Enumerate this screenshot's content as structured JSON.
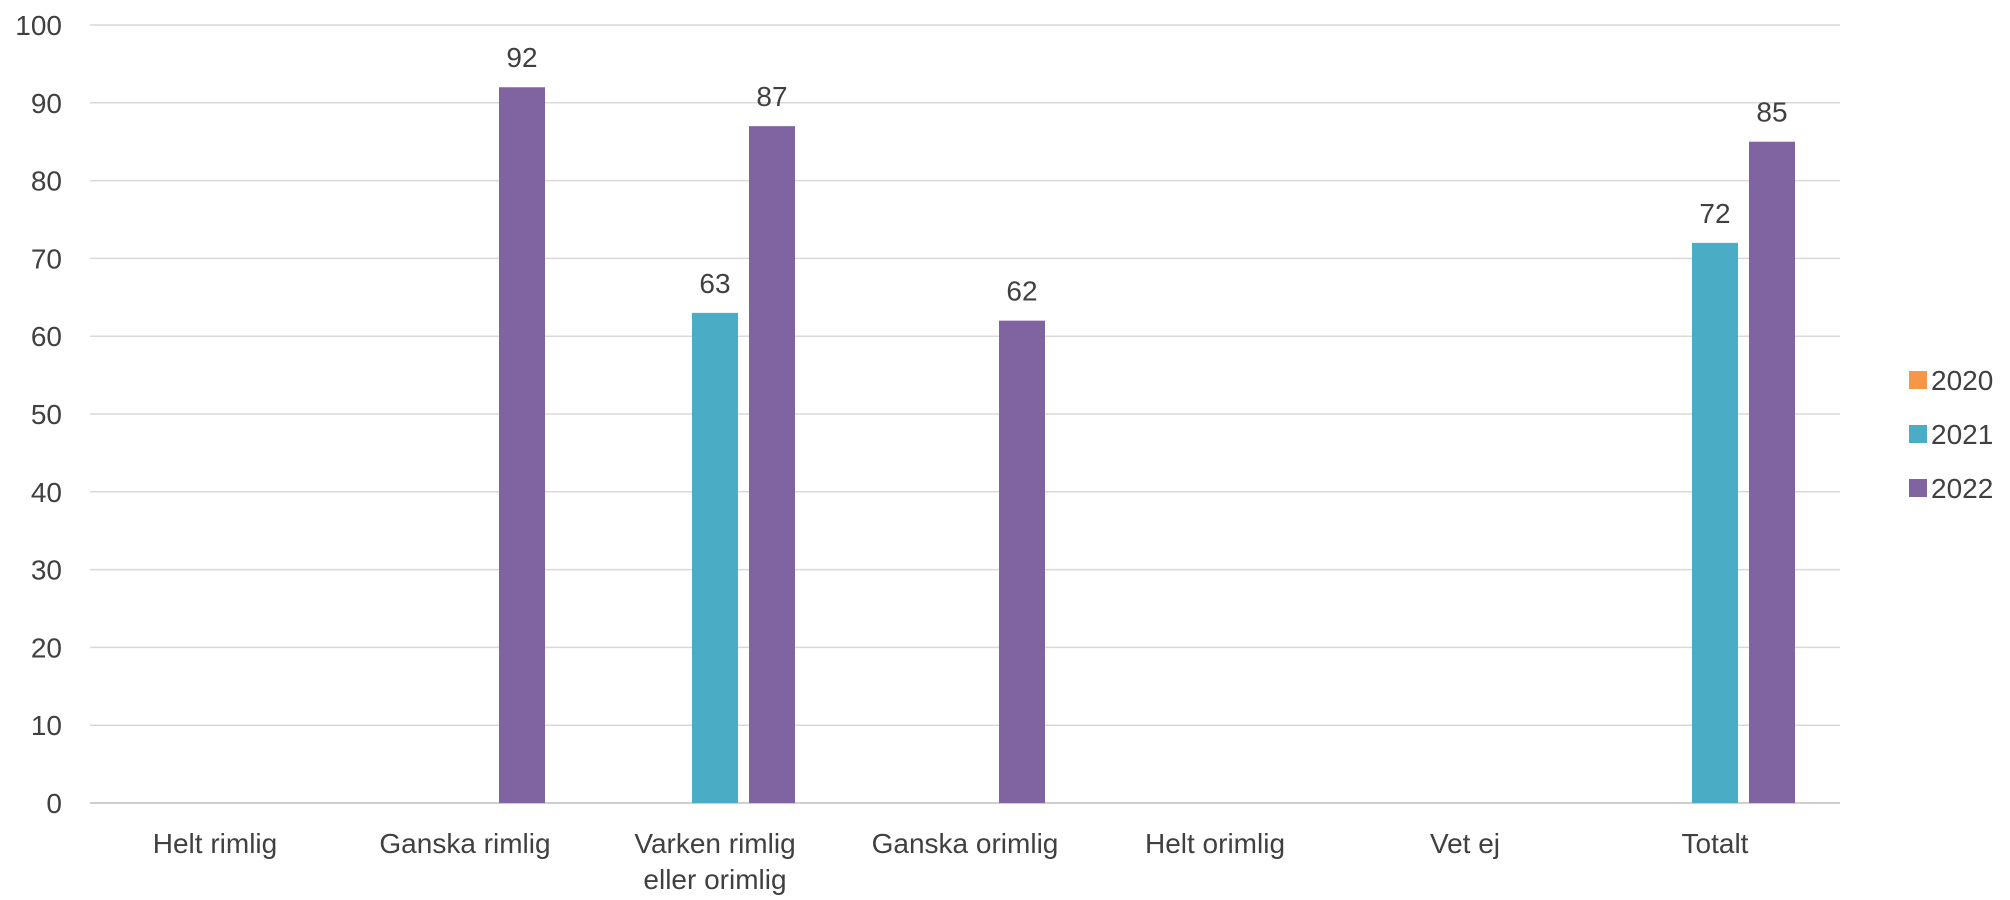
{
  "chart_data": {
    "type": "bar",
    "categories": [
      [
        "Helt rimlig"
      ],
      [
        "Ganska rimlig"
      ],
      [
        "Varken rimlig",
        "eller orimlig"
      ],
      [
        "Ganska orimlig"
      ],
      [
        "Helt orimlig"
      ],
      [
        "Vet ej"
      ],
      [
        "Totalt"
      ]
    ],
    "series": [
      {
        "name": "2020",
        "color": "#F79646",
        "values": [
          null,
          null,
          null,
          null,
          null,
          null,
          null
        ]
      },
      {
        "name": "2021",
        "color": "#4BACC6",
        "values": [
          null,
          null,
          63,
          null,
          null,
          null,
          72
        ]
      },
      {
        "name": "2022",
        "color": "#8064A2",
        "values": [
          null,
          92,
          87,
          62,
          null,
          null,
          85
        ]
      }
    ],
    "data_labels": true,
    "ylim": [
      0,
      100
    ],
    "yticks": [
      0,
      10,
      20,
      30,
      40,
      50,
      60,
      70,
      80,
      90,
      100
    ],
    "grid": true,
    "legend_position": "right"
  }
}
